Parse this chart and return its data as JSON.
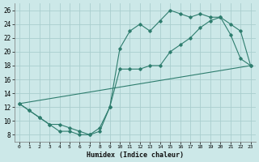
{
  "title": "",
  "xlabel": "Humidex (Indice chaleur)",
  "ylabel": "",
  "bg_color": "#cce8e8",
  "grid_color": "#aacece",
  "line_color": "#2e7d6e",
  "xlim": [
    -0.5,
    23.5
  ],
  "ylim": [
    7,
    27
  ],
  "yticks": [
    8,
    10,
    12,
    14,
    16,
    18,
    20,
    22,
    24,
    26
  ],
  "xticks": [
    0,
    1,
    2,
    3,
    4,
    5,
    6,
    7,
    8,
    9,
    10,
    11,
    12,
    13,
    14,
    15,
    16,
    17,
    18,
    19,
    20,
    21,
    22,
    23
  ],
  "series1_x": [
    0,
    1,
    2,
    3,
    4,
    5,
    6,
    7,
    8,
    9,
    10,
    11,
    12,
    13,
    14,
    15,
    16,
    17,
    18,
    19,
    20,
    21,
    22,
    23
  ],
  "series1_y": [
    12.5,
    11.5,
    10.5,
    9.5,
    8.5,
    8.5,
    8.0,
    8.0,
    8.5,
    12.0,
    20.5,
    23.0,
    24.0,
    23.0,
    24.5,
    26.0,
    25.5,
    25.0,
    25.5,
    25.0,
    25.0,
    22.5,
    19.0,
    18.0
  ],
  "series2_x": [
    0,
    1,
    2,
    3,
    4,
    5,
    6,
    7,
    8,
    9,
    10,
    11,
    12,
    13,
    14,
    15,
    16,
    17,
    18,
    19,
    20,
    21,
    22,
    23
  ],
  "series2_y": [
    12.5,
    11.5,
    10.5,
    9.5,
    9.5,
    9.0,
    8.5,
    8.0,
    9.0,
    12.0,
    17.5,
    17.5,
    17.5,
    18.0,
    18.0,
    20.0,
    21.0,
    22.0,
    23.5,
    24.5,
    25.0,
    24.0,
    23.0,
    18.0
  ],
  "series3_x": [
    0,
    23
  ],
  "series3_y": [
    12.5,
    18.0
  ]
}
